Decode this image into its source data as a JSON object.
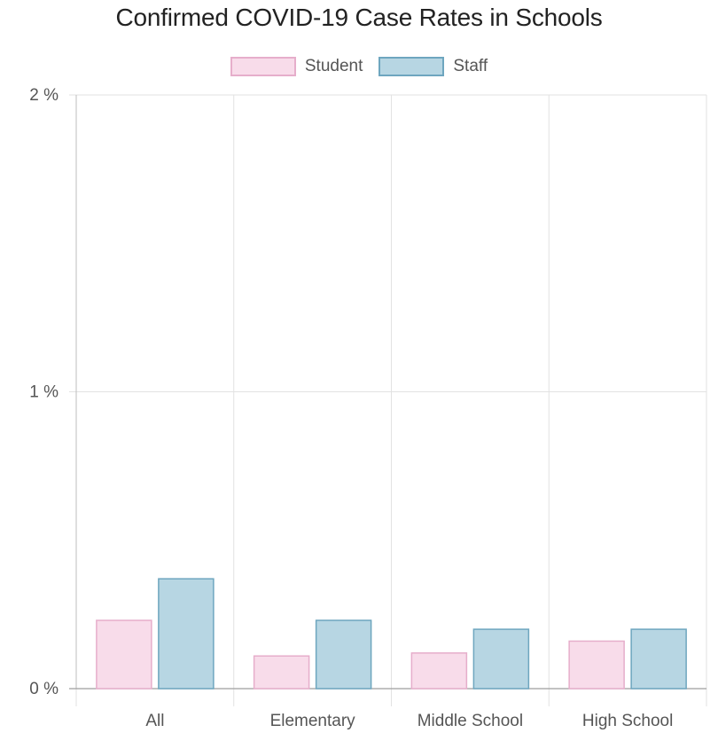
{
  "chart_data": {
    "type": "bar",
    "title": "Confirmed COVID-19 Case Rates in Schools",
    "xlabel": "",
    "ylabel": "",
    "categories": [
      "All",
      "Elementary",
      "Middle School",
      "High School"
    ],
    "series": [
      {
        "name": "Student",
        "values": [
          0.23,
          0.11,
          0.12,
          0.16
        ],
        "fill": "#f8dcea",
        "border": "#e6aecb"
      },
      {
        "name": "Staff",
        "values": [
          0.37,
          0.23,
          0.2,
          0.2
        ],
        "fill": "#b7d6e3",
        "border": "#6ea6bf"
      }
    ],
    "ylim": [
      0,
      2
    ],
    "yticks": [
      0,
      1,
      2
    ],
    "ytick_labels": [
      "0 %",
      "1 %",
      "2 %"
    ],
    "grid": true,
    "legend_position": "top-center"
  }
}
